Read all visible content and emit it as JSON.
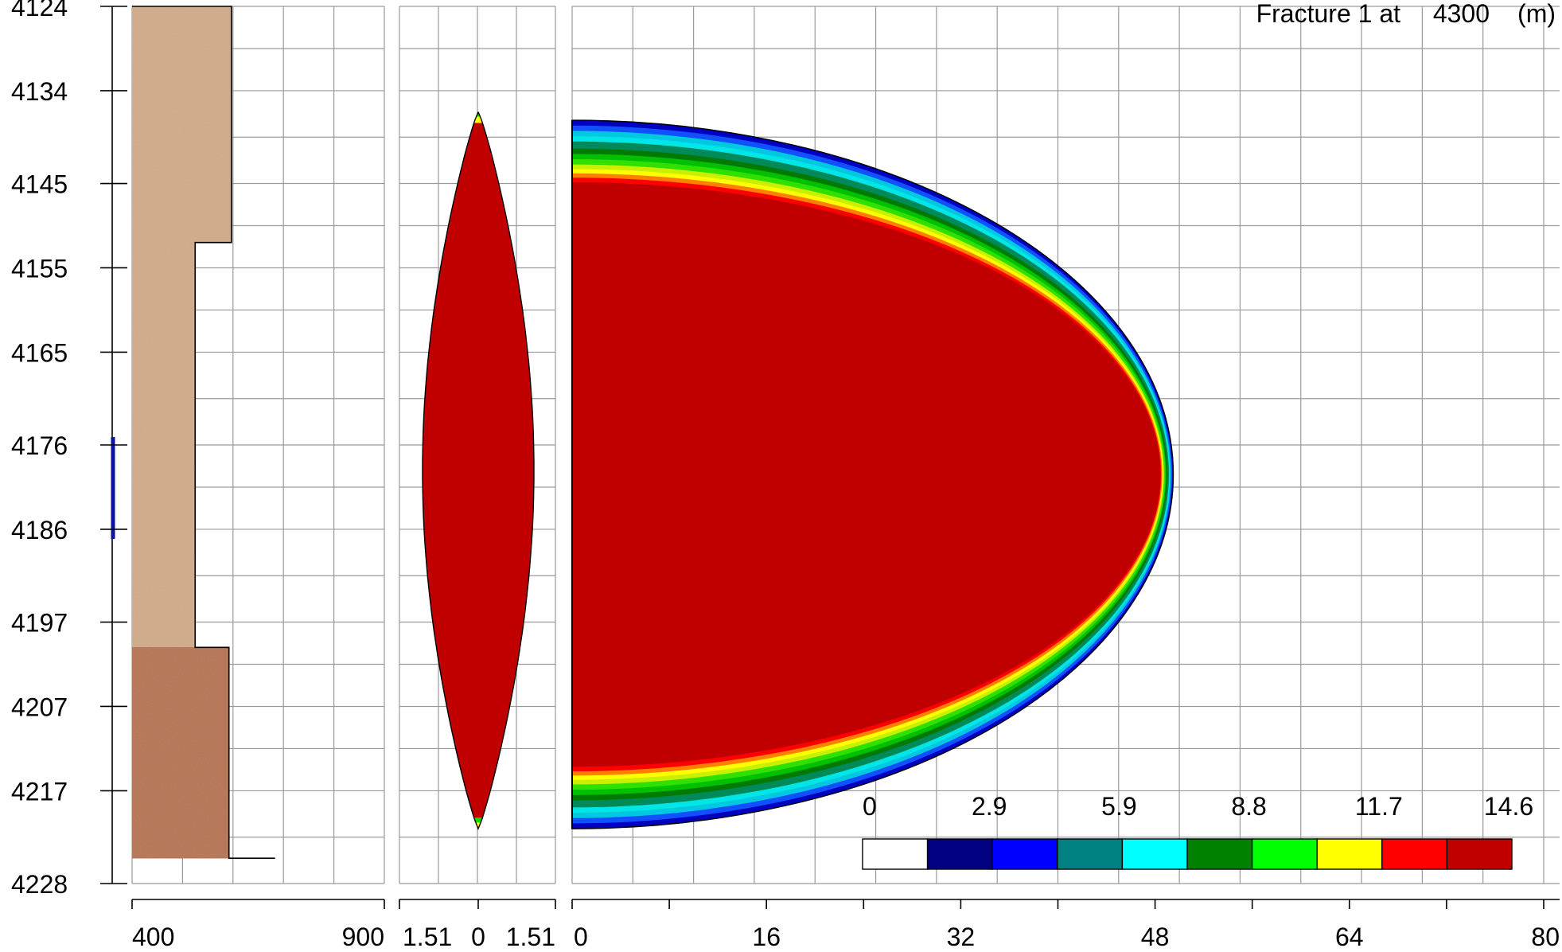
{
  "title": {
    "fracture_label": "Fracture 1 at",
    "depth_value": "4300",
    "depth_unit": "(m)"
  },
  "chart_data": [
    {
      "type": "log-track",
      "name": "stress-profile",
      "y_ticks": [
        "4124",
        "4134",
        "4145",
        "4155",
        "4165",
        "4176",
        "4186",
        "4197",
        "4207",
        "4217",
        "4228"
      ],
      "x_ticks": [
        "400",
        "900"
      ],
      "ylim": [
        4124,
        4228
      ],
      "grid": true,
      "perforation_interval": [
        4176,
        4186
      ],
      "perforation_color": "#0a14a0",
      "layers": [
        {
          "top": 4124,
          "bottom": 4152,
          "stress": 597,
          "texture": "light"
        },
        {
          "top": 4152,
          "bottom": 4200,
          "stress": 525,
          "texture": "light"
        },
        {
          "top": 4200,
          "bottom": 4225,
          "stress": 592,
          "texture": "dark"
        }
      ]
    },
    {
      "type": "area",
      "name": "width-profile",
      "x_ticks": [
        "1.51",
        "0",
        "1.51"
      ],
      "grid": true,
      "fill_color": "#c00000",
      "tip_colors": [
        "#ffff00",
        "#00e000"
      ]
    },
    {
      "type": "heatmap",
      "name": "fracture-profile",
      "x_ticks": [
        "0",
        "16",
        "32",
        "48",
        "64",
        "80"
      ],
      "xlim": [
        0,
        80
      ],
      "grid": true,
      "legend_placement": "bottom-right",
      "legend_labels": [
        "0",
        "2.9",
        "5.9",
        "8.8",
        "11.7",
        "14.6"
      ],
      "legend_colors": [
        "#ffffff",
        "#000080",
        "#0000ff",
        "#008080",
        "#00ffff",
        "#008000",
        "#00ff00",
        "#ffff00",
        "#ff0000",
        "#c00000"
      ]
    }
  ]
}
